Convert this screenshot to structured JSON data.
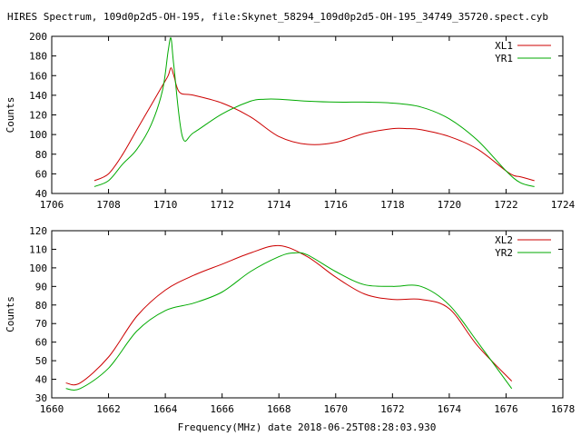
{
  "title": "HIRES Spectrum, 109d0p2d5-OH-195, file:Skynet_58294_109d0p2d5-OH-195_34749_35720.spect.cyb",
  "xlabel": "Frequency(MHz) date 2018-06-25T08:28:03.930",
  "chart_data": [
    {
      "type": "line",
      "ylabel": "Counts",
      "xlim": [
        1706,
        1724
      ],
      "ylim": [
        40,
        200
      ],
      "xticks": [
        1706,
        1708,
        1710,
        1712,
        1714,
        1716,
        1718,
        1720,
        1722,
        1724
      ],
      "yticks": [
        40,
        60,
        80,
        100,
        120,
        140,
        160,
        180,
        200
      ],
      "legend_position": "top-right",
      "series": [
        {
          "name": "XL1",
          "color": "#cc0000",
          "x": [
            1707.5,
            1708.0,
            1708.5,
            1709.0,
            1709.5,
            1709.9,
            1710.1,
            1710.2,
            1710.3,
            1710.5,
            1711.0,
            1712.0,
            1713.0,
            1714.0,
            1715.0,
            1716.0,
            1717.0,
            1718.0,
            1718.5,
            1719.0,
            1720.0,
            1721.0,
            1722.0,
            1722.3,
            1722.5,
            1723.0
          ],
          "y": [
            53,
            60,
            80,
            105,
            130,
            150,
            160,
            168,
            160,
            143,
            140,
            132,
            118,
            98,
            90,
            92,
            101,
            106,
            106,
            105,
            98,
            85,
            63,
            58,
            57,
            53
          ]
        },
        {
          "name": "YR1",
          "color": "#00aa00",
          "x": [
            1707.5,
            1708.0,
            1708.5,
            1709.0,
            1709.5,
            1709.9,
            1710.1,
            1710.2,
            1710.3,
            1710.6,
            1711.0,
            1712.0,
            1713.0,
            1713.5,
            1714.0,
            1715.0,
            1716.0,
            1717.0,
            1718.0,
            1719.0,
            1720.0,
            1721.0,
            1722.0,
            1722.5,
            1723.0
          ],
          "y": [
            47,
            53,
            70,
            85,
            110,
            145,
            185,
            198,
            170,
            98,
            102,
            121,
            134,
            136,
            136,
            134,
            133,
            133,
            132,
            128,
            116,
            94,
            63,
            51,
            47
          ]
        }
      ]
    },
    {
      "type": "line",
      "ylabel": "Counts",
      "xlim": [
        1660,
        1678
      ],
      "ylim": [
        30,
        120
      ],
      "xticks": [
        1660,
        1662,
        1664,
        1666,
        1668,
        1670,
        1672,
        1674,
        1676,
        1678
      ],
      "yticks": [
        30,
        40,
        50,
        60,
        70,
        80,
        90,
        100,
        110,
        120
      ],
      "legend_position": "top-right",
      "series": [
        {
          "name": "XL2",
          "color": "#cc0000",
          "x": [
            1660.5,
            1661.0,
            1662.0,
            1663.0,
            1664.0,
            1665.0,
            1666.0,
            1667.0,
            1668.0,
            1669.0,
            1670.0,
            1671.0,
            1672.0,
            1673.0,
            1674.0,
            1675.0,
            1676.2
          ],
          "y": [
            38,
            38,
            52,
            74,
            88,
            96,
            102,
            108,
            112,
            106,
            95,
            86,
            83,
            83,
            78,
            58,
            39
          ]
        },
        {
          "name": "YR2",
          "color": "#00aa00",
          "x": [
            1660.5,
            1661.0,
            1662.0,
            1663.0,
            1664.0,
            1665.0,
            1666.0,
            1667.0,
            1668.0,
            1668.5,
            1669.0,
            1670.0,
            1671.0,
            1672.0,
            1673.0,
            1674.0,
            1675.0,
            1676.2
          ],
          "y": [
            35,
            35,
            46,
            66,
            77,
            81,
            87,
            98,
            106,
            108,
            107,
            98,
            91,
            90,
            90,
            80,
            60,
            35
          ]
        }
      ]
    }
  ]
}
